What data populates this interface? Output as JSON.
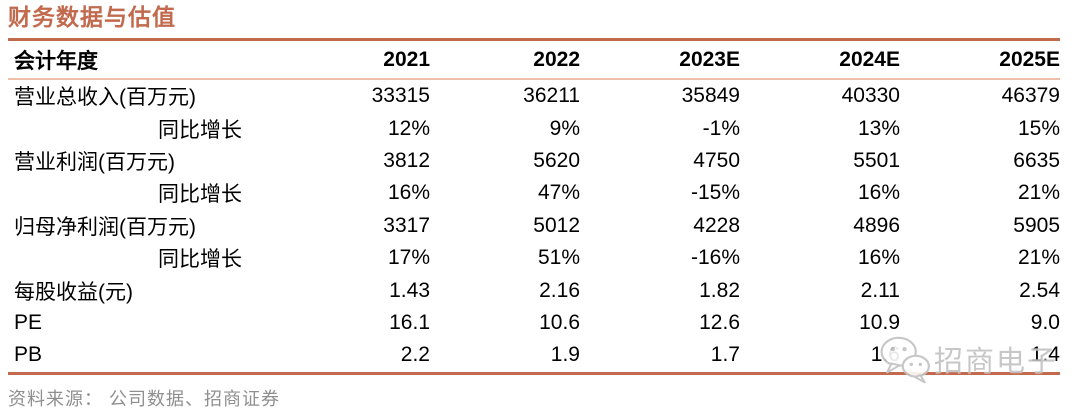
{
  "page": {
    "title": "财务数据与估值",
    "source_note": "资料来源： 公司数据、招商证券",
    "watermark": {
      "icon": "wechat-icon",
      "text": "招商电子"
    }
  },
  "colors": {
    "accent": "#C26A4E",
    "header_underline": "#EFC0A8",
    "text": "#000000",
    "muted": "#8F8F8F",
    "watermark": "#C2C2C2"
  },
  "chart_data": {
    "type": "table",
    "title": "财务数据与估值",
    "columns": [
      "会计年度",
      "2021",
      "2022",
      "2023E",
      "2024E",
      "2025E"
    ],
    "rows": [
      {
        "label": "营业总收入(百万元)",
        "indent": false,
        "values": [
          "33315",
          "36211",
          "35849",
          "40330",
          "46379"
        ]
      },
      {
        "label": "同比增长",
        "indent": true,
        "values": [
          "12%",
          "9%",
          "-1%",
          "13%",
          "15%"
        ]
      },
      {
        "label": "营业利润(百万元)",
        "indent": false,
        "values": [
          "3812",
          "5620",
          "4750",
          "5501",
          "6635"
        ]
      },
      {
        "label": "同比增长",
        "indent": true,
        "values": [
          "16%",
          "47%",
          "-15%",
          "16%",
          "21%"
        ]
      },
      {
        "label": "归母净利润(百万元)",
        "indent": false,
        "values": [
          "3317",
          "5012",
          "4228",
          "4896",
          "5905"
        ]
      },
      {
        "label": "同比增长",
        "indent": true,
        "values": [
          "17%",
          "51%",
          "-16%",
          "16%",
          "21%"
        ]
      },
      {
        "label": "每股收益(元)",
        "indent": false,
        "values": [
          "1.43",
          "2.16",
          "1.82",
          "2.11",
          "2.54"
        ]
      },
      {
        "label": "PE",
        "indent": false,
        "values": [
          "16.1",
          "10.6",
          "12.6",
          "10.9",
          "9.0"
        ]
      },
      {
        "label": "PB",
        "indent": false,
        "values": [
          "2.2",
          "1.9",
          "1.7",
          "1.6",
          "1.4"
        ]
      }
    ]
  }
}
